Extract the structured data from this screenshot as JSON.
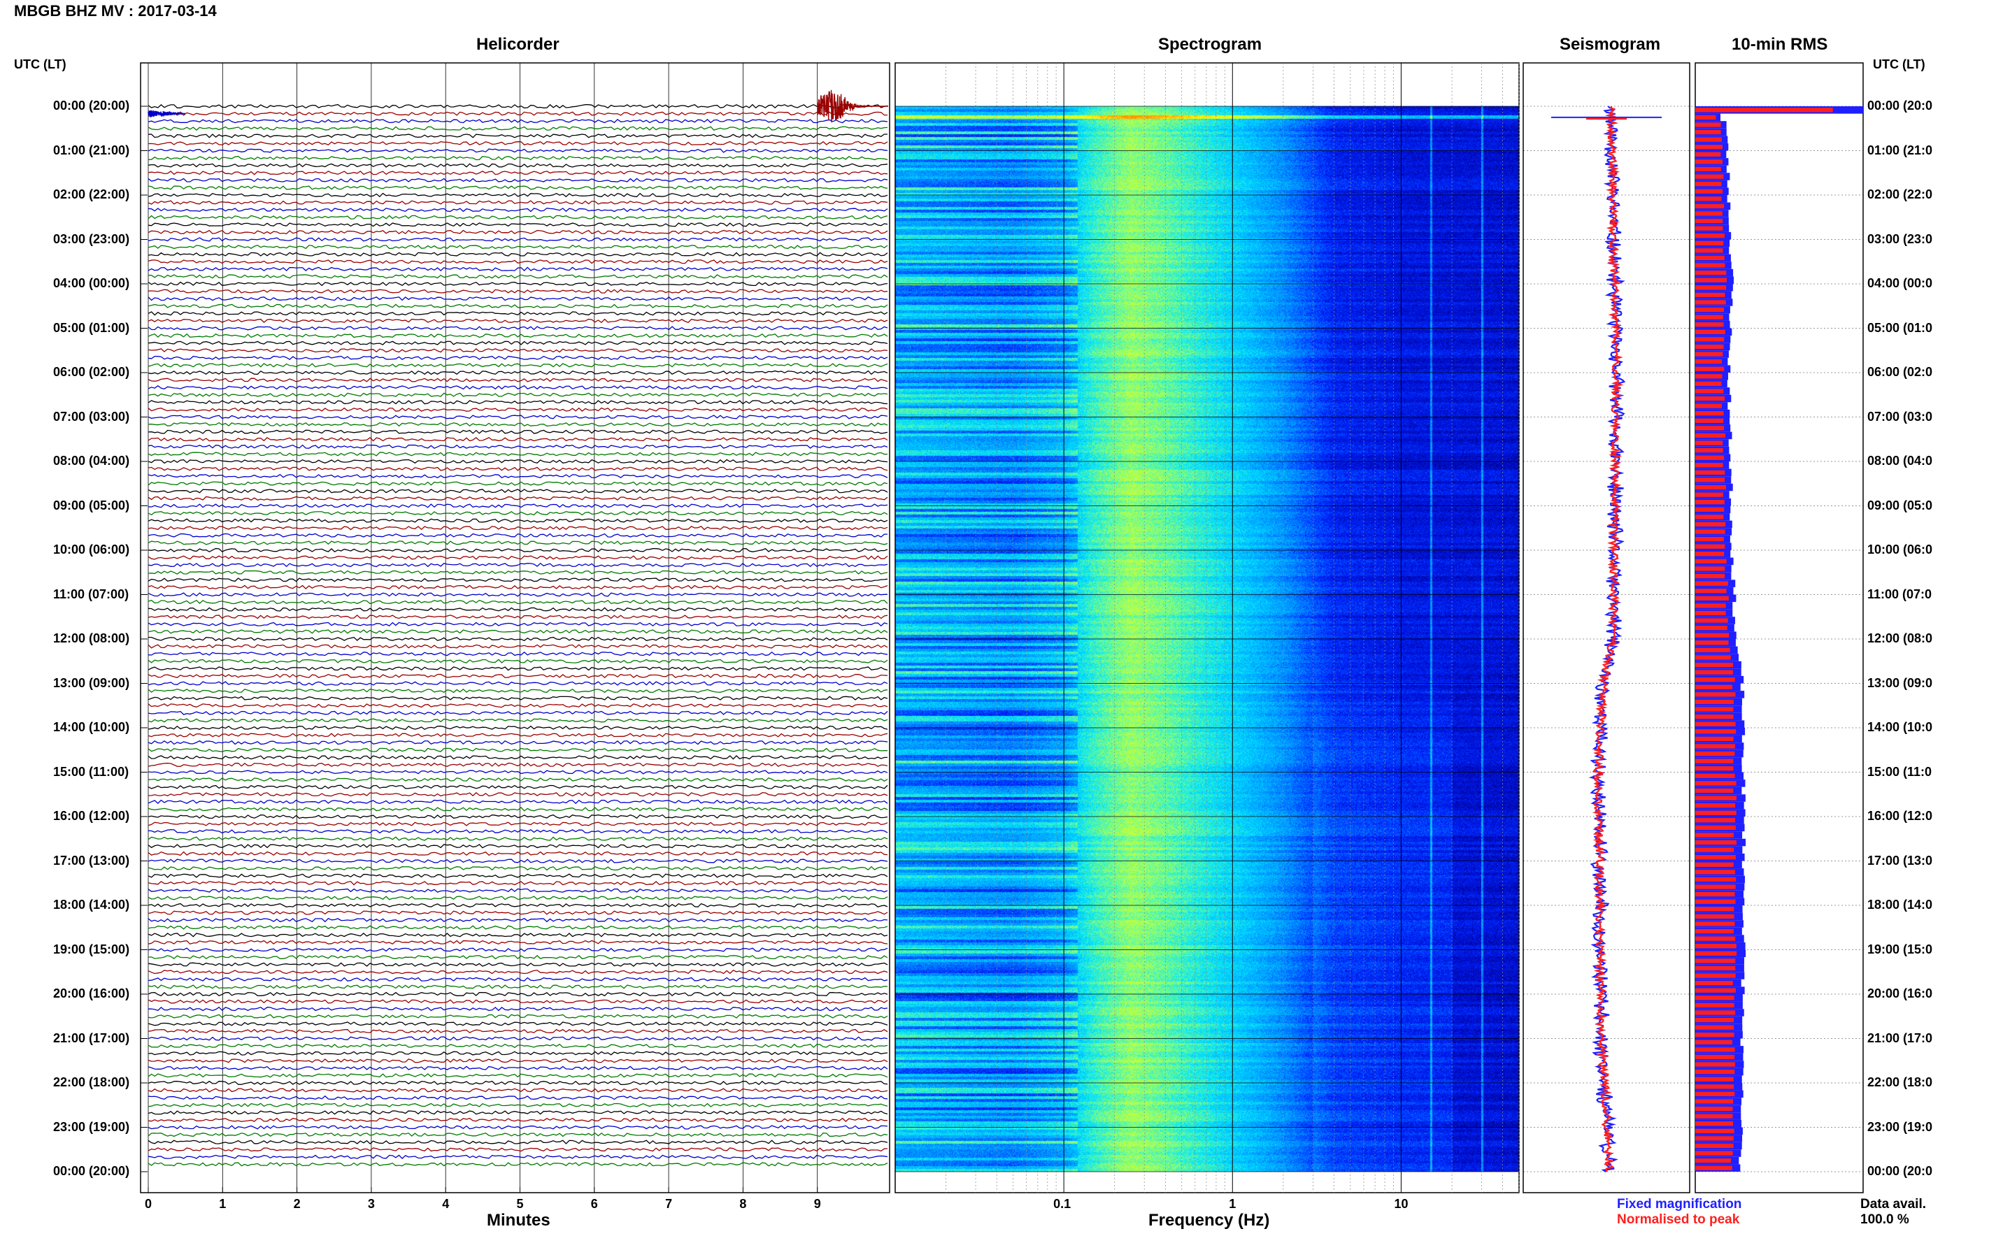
{
  "header": {
    "title": "MBGB BHZ MV : 2017-03-14",
    "utc_left": "UTC (LT)",
    "utc_right": "UTC (LT)"
  },
  "panels": {
    "helicorder": "Helicorder",
    "spectrogram": "Spectrogram",
    "seismogram": "Seismogram",
    "rms": "10-min RMS"
  },
  "time_labels_left": [
    "00:00 (20:00)",
    "01:00 (21:00)",
    "02:00 (22:00)",
    "03:00 (23:00)",
    "04:00 (00:00)",
    "05:00 (01:00)",
    "06:00 (02:00)",
    "07:00 (03:00)",
    "08:00 (04:00)",
    "09:00 (05:00)",
    "10:00 (06:00)",
    "11:00 (07:00)",
    "12:00 (08:00)",
    "13:00 (09:00)",
    "14:00 (10:00)",
    "15:00 (11:00)",
    "16:00 (12:00)",
    "17:00 (13:00)",
    "18:00 (14:00)",
    "19:00 (15:00)",
    "20:00 (16:00)",
    "21:00 (17:00)",
    "22:00 (18:00)",
    "23:00 (19:00)",
    "00:00 (20:00)"
  ],
  "time_labels_right": [
    "00:00 (20:0",
    "01:00 (21:0",
    "02:00 (22:0",
    "03:00 (23:0",
    "04:00 (00:0",
    "05:00 (01:0",
    "06:00 (02:0",
    "07:00 (03:0",
    "08:00 (04:0",
    "09:00 (05:0",
    "10:00 (06:0",
    "11:00 (07:0",
    "12:00 (08:0",
    "13:00 (09:0",
    "14:00 (10:0",
    "15:00 (11:0",
    "16:00 (12:0",
    "17:00 (13:0",
    "18:00 (14:0",
    "19:00 (15:0",
    "20:00 (16:0",
    "21:00 (17:0",
    "22:00 (18:0",
    "23:00 (19:0",
    "00:00 (20:0"
  ],
  "chart_data": [
    {
      "type": "line",
      "name": "helicorder",
      "title": "Helicorder",
      "xlabel": "Minutes",
      "xlim": [
        0,
        10
      ],
      "x_ticks": [
        "0",
        "1",
        "2",
        "3",
        "4",
        "5",
        "6",
        "7",
        "8",
        "9"
      ],
      "rows": 144,
      "row_minutes": 10,
      "trace_colors": [
        "#000000",
        "#9a0000",
        "#0000cc",
        "#007a00"
      ],
      "events": [
        {
          "row": 0,
          "start_min": 9.0,
          "end_min": 10.0,
          "peak_rows": 2.2,
          "color": "#9a0000"
        },
        {
          "row": 1,
          "start_min": 0.0,
          "end_min": 0.5,
          "peak_rows": 0.5,
          "color": "#0000cc"
        }
      ]
    },
    {
      "type": "heatmap",
      "name": "spectrogram",
      "title": "Spectrogram",
      "xlabel": "Frequency (Hz)",
      "x_scale": "log",
      "xlim": [
        0.01,
        50
      ],
      "x_ticks": [
        "0.1",
        "1",
        "10"
      ],
      "colormap": [
        "#00008f",
        "#0020ff",
        "#0090ff",
        "#00e5ff",
        "#90ff70",
        "#ffff00",
        "#ff9000"
      ],
      "profile": [
        {
          "hz": 0.01,
          "level": 0.42
        },
        {
          "hz": 0.05,
          "level": 0.36
        },
        {
          "hz": 0.1,
          "level": 0.42
        },
        {
          "hz": 0.15,
          "level": 0.56
        },
        {
          "hz": 0.25,
          "level": 0.68
        },
        {
          "hz": 0.4,
          "level": 0.62
        },
        {
          "hz": 1.0,
          "level": 0.47
        },
        {
          "hz": 2.0,
          "level": 0.34
        },
        {
          "hz": 4.0,
          "level": 0.16
        },
        {
          "hz": 10.0,
          "level": 0.12
        },
        {
          "hz": 50.0,
          "level": 0.1
        }
      ],
      "lines_hz": [
        15.0,
        30.0
      ]
    },
    {
      "type": "line",
      "name": "seismogram",
      "title": "Seismogram",
      "legend": [
        {
          "label": "Fixed magnification",
          "color": "#1f1fff"
        },
        {
          "label": "Normalised to peak",
          "color": "#ff1f1f"
        }
      ],
      "profile_hours": [
        0,
        3,
        6,
        9,
        12,
        13,
        15,
        18,
        21,
        24
      ],
      "profile_values": [
        0.53,
        0.54,
        0.56,
        0.55,
        0.54,
        0.48,
        0.45,
        0.46,
        0.47,
        0.52
      ]
    },
    {
      "type": "bar",
      "name": "rms",
      "title": "10-min RMS",
      "orientation": "horizontal",
      "footer_label": "Data avail.",
      "footer_value": "100.0 %",
      "blue_color": "#1f1fff",
      "red_color": "#ff1f1f",
      "first_bar_value": 1.0,
      "profile_hours": [
        0,
        2,
        4,
        6,
        8,
        10,
        12,
        13,
        16,
        19,
        21,
        24
      ],
      "profile_values": [
        0.18,
        0.2,
        0.22,
        0.2,
        0.21,
        0.22,
        0.24,
        0.28,
        0.29,
        0.29,
        0.28,
        0.27
      ]
    }
  ]
}
